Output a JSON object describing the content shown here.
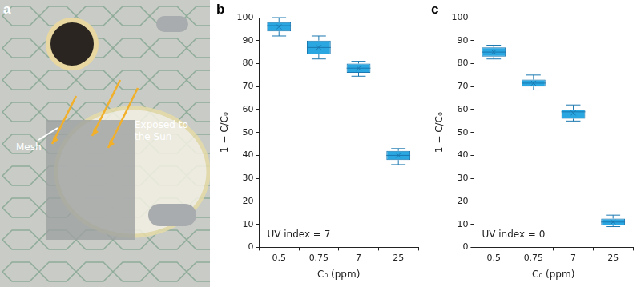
{
  "photo": {
    "panel": "a",
    "labels": [
      "Mesh",
      "Exposed to the Sun"
    ]
  },
  "chart_data": [
    {
      "type": "box",
      "panel": "b",
      "annotation": "UV index = 7",
      "x_label": "C₀ (ppm)",
      "y_label": "1 − C/C₀",
      "categories": [
        "0.5",
        "0.75",
        "7",
        "25"
      ],
      "whisker_low": [
        92,
        82,
        74.5,
        36
      ],
      "q1": [
        94,
        84,
        76,
        38
      ],
      "median": [
        96.5,
        87,
        78,
        40
      ],
      "mean": [
        96,
        87,
        78,
        40
      ],
      "q3": [
        98,
        90,
        80,
        42
      ],
      "whisker_high": [
        100,
        92,
        81,
        43
      ],
      "color": "#2aa6e0",
      "ylim": [
        0,
        100
      ],
      "yticks": [
        0,
        10,
        20,
        30,
        40,
        50,
        60,
        70,
        80,
        90,
        100
      ],
      "grid": false
    },
    {
      "type": "box",
      "panel": "c",
      "annotation": "UV index = 0",
      "x_label": "C₀ (ppm)",
      "y_label": "1 − C/C₀",
      "categories": [
        "0.5",
        "0.75",
        "7",
        "25"
      ],
      "whisker_low": [
        82,
        68.5,
        55,
        9
      ],
      "q1": [
        83,
        70,
        56,
        9.5
      ],
      "median": [
        85,
        71.5,
        59,
        11
      ],
      "mean": [
        85,
        71.5,
        58.5,
        11
      ],
      "q3": [
        87,
        73,
        60,
        12.5
      ],
      "whisker_high": [
        88,
        75,
        62,
        14
      ],
      "color": "#2aa6e0",
      "ylim": [
        0,
        100
      ],
      "yticks": [
        0,
        10,
        20,
        30,
        40,
        50,
        60,
        70,
        80,
        90,
        100
      ],
      "grid": false
    }
  ]
}
